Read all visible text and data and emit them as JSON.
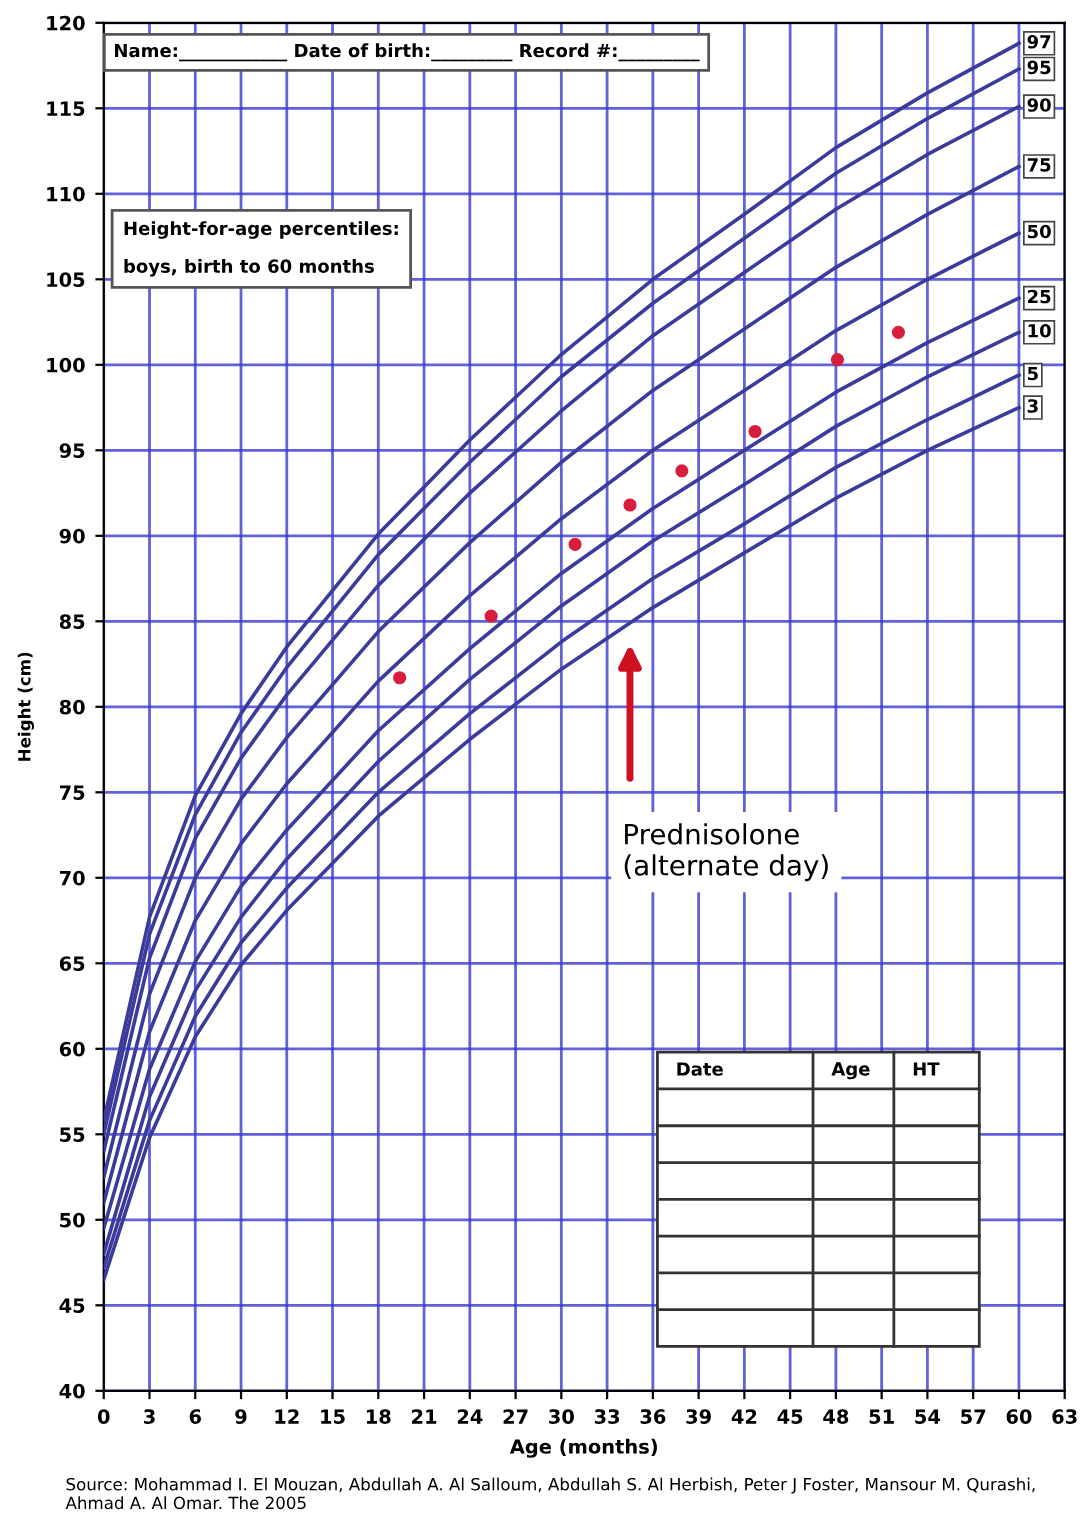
{
  "chart_data": {
    "type": "line",
    "title": "Height-for-age percentiles:",
    "subtitle": "boys, birth to 60 months",
    "xlabel": "Age (months)",
    "ylabel": "Height (cm)",
    "x": [
      0,
      3,
      6,
      9,
      12,
      18,
      24,
      30,
      36,
      42,
      48,
      54,
      60
    ],
    "series": [
      {
        "name": "97",
        "color": "#3b3b9c",
        "values": [
          55.8,
          67.7,
          74.8,
          79.6,
          83.5,
          90.1,
          95.6,
          100.6,
          105.0,
          108.8,
          112.7,
          115.9,
          118.8
        ]
      },
      {
        "name": "95",
        "color": "#3b3b9c",
        "values": [
          55.0,
          66.7,
          73.7,
          78.5,
          82.3,
          88.9,
          94.3,
          99.3,
          103.6,
          107.4,
          111.2,
          114.4,
          117.3
        ]
      },
      {
        "name": "90",
        "color": "#3b3b9c",
        "values": [
          54.0,
          65.3,
          72.3,
          77.0,
          80.7,
          87.1,
          92.5,
          97.3,
          101.7,
          105.4,
          109.1,
          112.3,
          115.1
        ]
      },
      {
        "name": "75",
        "color": "#3b3b9c",
        "values": [
          52.5,
          63.2,
          70.0,
          74.6,
          78.2,
          84.4,
          89.6,
          94.3,
          98.5,
          102.1,
          105.7,
          108.8,
          111.6
        ]
      },
      {
        "name": "50",
        "color": "#3b3b9c",
        "values": [
          51.0,
          61.0,
          67.5,
          72.0,
          75.5,
          81.5,
          86.5,
          91.0,
          95.0,
          98.5,
          102.0,
          105.0,
          107.7
        ]
      },
      {
        "name": "25",
        "color": "#3b3b9c",
        "values": [
          49.5,
          58.8,
          65.1,
          69.5,
          72.8,
          78.6,
          83.4,
          87.8,
          91.6,
          95.0,
          98.4,
          101.3,
          103.9
        ]
      },
      {
        "name": "10",
        "color": "#3b3b9c",
        "values": [
          48.0,
          57.2,
          63.4,
          67.7,
          71.1,
          76.8,
          81.6,
          85.9,
          89.7,
          93.0,
          96.4,
          99.3,
          101.9
        ]
      },
      {
        "name": "5",
        "color": "#3b3b9c",
        "values": [
          47.2,
          55.8,
          61.9,
          66.2,
          69.4,
          75.0,
          79.6,
          83.8,
          87.5,
          90.7,
          94.0,
          96.8,
          99.4
        ]
      },
      {
        "name": "3",
        "color": "#3b3b9c",
        "values": [
          46.5,
          54.8,
          60.7,
          64.9,
          68.1,
          73.6,
          78.1,
          82.2,
          85.8,
          89.0,
          92.2,
          95.0,
          97.5
        ]
      },
      {
        "type": "scatter",
        "marker": "circle",
        "color": "#d81e3c",
        "x": [
          19.4,
          25.4,
          30.9,
          34.5,
          37.9,
          42.7,
          48.1,
          52.1
        ],
        "values": [
          81.7,
          85.3,
          89.5,
          91.8,
          93.8,
          96.1,
          100.3,
          101.9
        ]
      }
    ],
    "line_style": "solid",
    "xlim": [
      0,
      63
    ],
    "xticks": [
      0,
      3,
      6,
      9,
      12,
      15,
      18,
      21,
      24,
      27,
      30,
      33,
      36,
      39,
      42,
      45,
      48,
      51,
      54,
      57,
      60,
      63
    ],
    "ylim": [
      40,
      120
    ],
    "yticks": [
      40,
      45,
      50,
      55,
      60,
      65,
      70,
      75,
      80,
      85,
      90,
      95,
      100,
      105,
      110,
      115,
      120
    ],
    "grid": true,
    "annotations": [
      "Name:____________ Date of birth:_________ Record #:_________",
      "Prednisolone\n(alternate day)",
      "Date",
      "Age",
      "HT",
      "Source: Mohammad I. El Mouzan, Abdullah A. Al Salloum, Abdullah S. Al Herbish, Peter J Foster, Mansour M. Qurashi, Ahmad A. Al Omar. The 2005"
    ]
  }
}
